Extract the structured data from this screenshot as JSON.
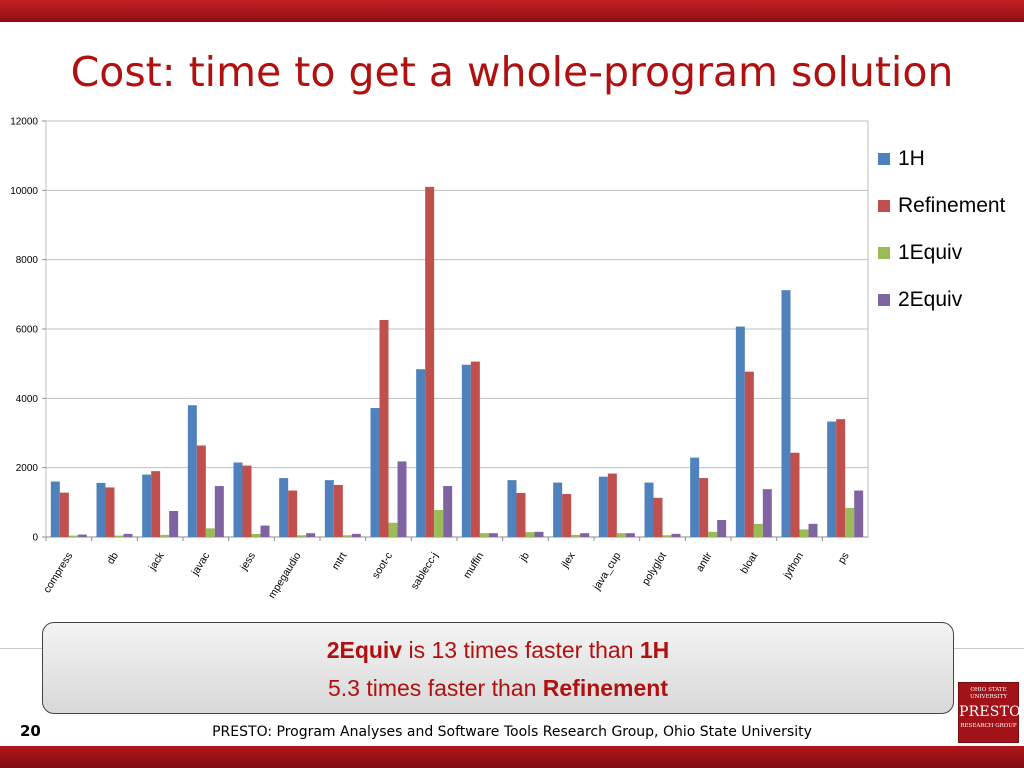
{
  "slide": {
    "title": "Cost: time to get a whole-program solution",
    "number": "20",
    "footer": "PRESTO: Program Analyses and Software Tools Research Group, Ohio State University",
    "callout": {
      "line1_bold": "2Equiv",
      "line1_text": " is 13 times faster than ",
      "line1_bold2": "1H",
      "line2_text": "5.3 times faster than ",
      "line2_bold": "Refinement"
    },
    "logo": {
      "top": "OHIO STATE UNIVERSITY",
      "main": "PRESTO",
      "bottom": "RESEARCH GROUP"
    }
  },
  "colors": {
    "title": "#b01010",
    "series": [
      "#4f81bd",
      "#c0504d",
      "#9bbb59",
      "#8064a2"
    ]
  },
  "chart_data": {
    "type": "bar",
    "title": "",
    "xlabel": "",
    "ylabel": "",
    "ylim": [
      0,
      12000
    ],
    "yticks": [
      0,
      2000,
      4000,
      6000,
      8000,
      10000,
      12000
    ],
    "grid": true,
    "legend_position": "right",
    "categories": [
      "compress",
      "db",
      "jack",
      "javac",
      "jess",
      "mpegaudio",
      "mtrt",
      "soot-c",
      "sablecc-j",
      "muffin",
      "jb",
      "jlex",
      "java_cup",
      "polyglot",
      "antlr",
      "bloat",
      "jython",
      "ps"
    ],
    "series": [
      {
        "name": "1H",
        "values": [
          1600,
          1560,
          1800,
          3800,
          2150,
          1700,
          1640,
          3720,
          4840,
          4970,
          1640,
          1570,
          1740,
          1570,
          2290,
          6070,
          7120,
          3330
        ]
      },
      {
        "name": "Refinement",
        "values": [
          1280,
          1430,
          1900,
          2640,
          2060,
          1340,
          1500,
          6260,
          10100,
          5060,
          1270,
          1240,
          1830,
          1130,
          1700,
          4770,
          2430,
          3400
        ]
      },
      {
        "name": "1Equiv",
        "values": [
          40,
          40,
          60,
          250,
          90,
          50,
          50,
          410,
          780,
          110,
          140,
          60,
          110,
          50,
          150,
          380,
          220,
          840
        ]
      },
      {
        "name": "2Equiv",
        "values": [
          70,
          90,
          750,
          1470,
          330,
          110,
          90,
          2180,
          1470,
          110,
          150,
          110,
          110,
          90,
          490,
          1380,
          380,
          1340
        ]
      }
    ]
  }
}
